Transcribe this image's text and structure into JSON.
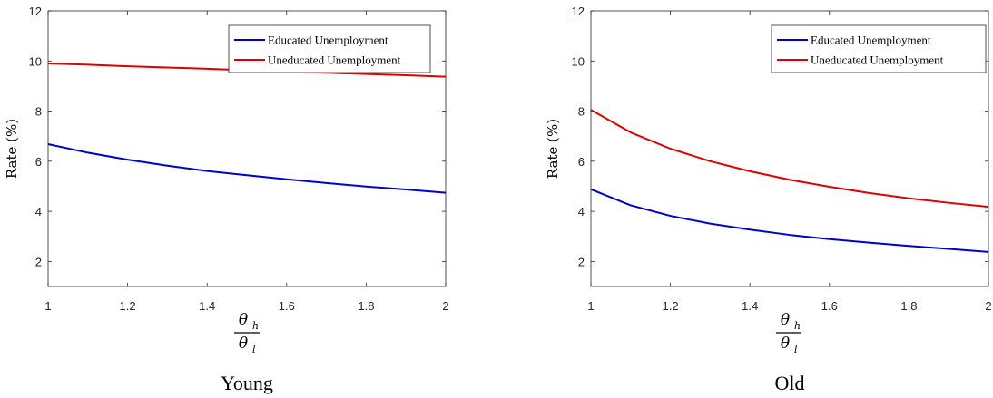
{
  "chart_data": [
    {
      "type": "line",
      "title": "Young",
      "xlabel": {
        "numerator": "θ",
        "numerator_sub": "h",
        "denominator": "θ",
        "denominator_sub": "l"
      },
      "ylabel": "Rate (%)",
      "xlim": [
        1,
        2
      ],
      "ylim": [
        1,
        12
      ],
      "xticks": [
        "1",
        "1.2",
        "1.4",
        "1.6",
        "1.8",
        "2"
      ],
      "yticks": [
        "2",
        "4",
        "6",
        "8",
        "10",
        "12"
      ],
      "legend_position": "top-right",
      "x": [
        1.0,
        1.1,
        1.2,
        1.3,
        1.4,
        1.5,
        1.6,
        1.7,
        1.8,
        1.9,
        2.0
      ],
      "series": [
        {
          "name": "Educated Unemployment",
          "color": "#0000cc",
          "values": [
            6.68,
            6.34,
            6.06,
            5.82,
            5.61,
            5.44,
            5.28,
            5.13,
            4.99,
            4.87,
            4.74
          ]
        },
        {
          "name": "Uneducated Unemployment",
          "color": "#dd0000",
          "values": [
            9.9,
            9.85,
            9.79,
            9.74,
            9.69,
            9.63,
            9.58,
            9.53,
            9.48,
            9.43,
            9.37
          ]
        }
      ]
    },
    {
      "type": "line",
      "title": "Old",
      "xlabel": {
        "numerator": "θ",
        "numerator_sub": "h",
        "denominator": "θ",
        "denominator_sub": "l"
      },
      "ylabel": "Rate (%)",
      "xlim": [
        1,
        2
      ],
      "ylim": [
        1,
        12
      ],
      "xticks": [
        "1",
        "1.2",
        "1.4",
        "1.6",
        "1.8",
        "2"
      ],
      "yticks": [
        "2",
        "4",
        "6",
        "8",
        "10",
        "12"
      ],
      "legend_position": "top-right",
      "x": [
        1.0,
        1.1,
        1.2,
        1.3,
        1.4,
        1.5,
        1.6,
        1.7,
        1.8,
        1.9,
        2.0
      ],
      "series": [
        {
          "name": "Educated Unemployment",
          "color": "#0000cc",
          "values": [
            4.88,
            4.24,
            3.82,
            3.51,
            3.27,
            3.06,
            2.89,
            2.75,
            2.62,
            2.5,
            2.38
          ]
        },
        {
          "name": "Uneducated Unemployment",
          "color": "#dd0000",
          "values": [
            8.05,
            7.15,
            6.5,
            6.0,
            5.6,
            5.26,
            4.98,
            4.73,
            4.52,
            4.34,
            4.18
          ]
        }
      ]
    }
  ]
}
